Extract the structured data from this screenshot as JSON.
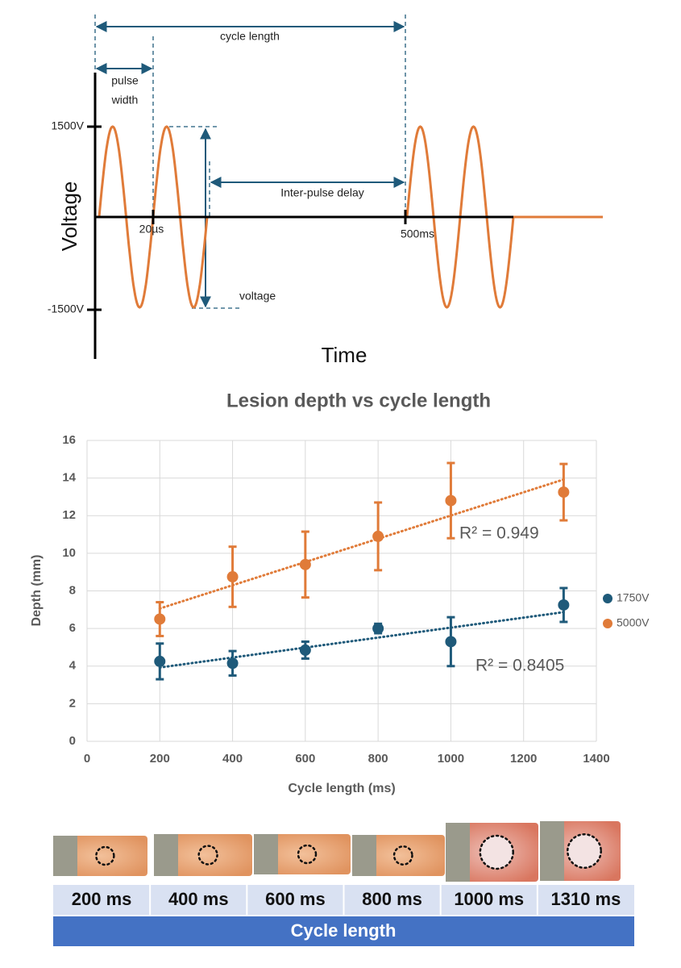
{
  "diagram": {
    "cycle_label": "cycle length",
    "pulse_width_lines": [
      "pulse",
      "width"
    ],
    "y_high": "1500V",
    "y_low": "-1500V",
    "y_axis_label": "Voltage",
    "x_axis_label": "Time",
    "tick_pulse": "20µs",
    "tick_cycle": "500ms",
    "delay_label": "Inter-pulse delay",
    "amplitude_label": "voltage"
  },
  "chart_data": {
    "type": "scatter",
    "title": "Lesion depth vs cycle length",
    "x_label": "Cycle length (ms)",
    "y_label": "Depth (mm)",
    "xlim": [
      0,
      1400
    ],
    "xticks": [
      0,
      200,
      400,
      600,
      800,
      1000,
      1200,
      1400
    ],
    "ylim": [
      0,
      16
    ],
    "yticks": [
      0,
      2,
      4,
      6,
      8,
      10,
      12,
      14,
      16
    ],
    "grid": true,
    "legend": "right",
    "series": [
      {
        "name": "1750V",
        "color": "#1f5a7a",
        "x": [
          200,
          400,
          600,
          800,
          1000,
          1310
        ],
        "values": [
          4.25,
          4.15,
          4.85,
          6.0,
          5.3,
          7.25
        ],
        "errors": [
          0.95,
          0.65,
          0.45,
          0.25,
          1.3,
          0.9
        ],
        "trend_label": "R² = 0.8405"
      },
      {
        "name": "5000V",
        "color": "#e07b39",
        "x": [
          200,
          400,
          600,
          800,
          1000,
          1310
        ],
        "values": [
          6.5,
          8.75,
          9.4,
          10.9,
          12.8,
          13.25
        ],
        "errors": [
          0.9,
          1.6,
          1.75,
          1.8,
          2.0,
          1.5
        ],
        "trend_label": "R² = 0.949"
      }
    ]
  },
  "photo_strip": {
    "labels": [
      "200 ms",
      "400 ms",
      "600 ms",
      "800 ms",
      "1000 ms",
      "1310 ms"
    ],
    "footer": "Cycle length"
  }
}
